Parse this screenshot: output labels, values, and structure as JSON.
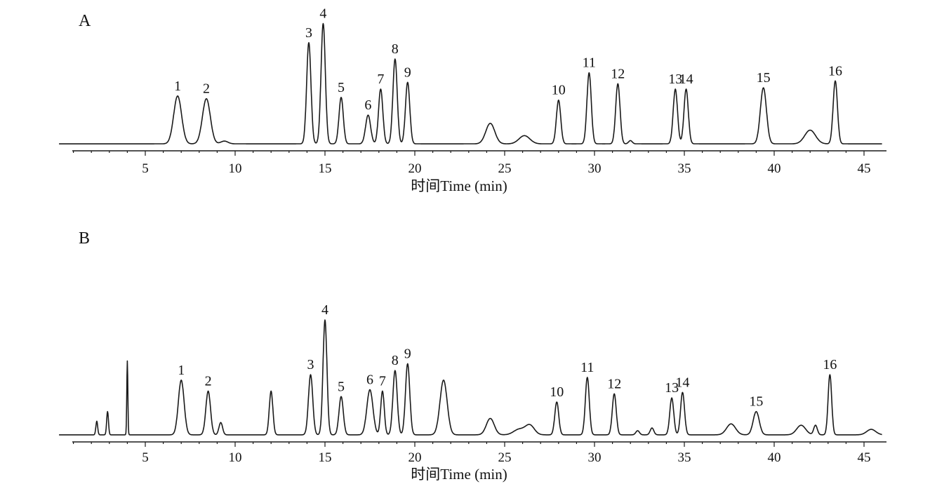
{
  "chart_data": [
    {
      "type": "line",
      "panel": "A",
      "xlabel": "时间Time (min)",
      "xlim": [
        0.2,
        46
      ],
      "xticks": [
        5,
        10,
        15,
        20,
        25,
        30,
        35,
        40,
        45
      ],
      "y_axis_visible": false,
      "grid": false,
      "baseline": 0.5,
      "peaks": [
        {
          "label": "1",
          "t": 6.8,
          "h": 17.5,
          "w": 0.22
        },
        {
          "label": "2",
          "t": 8.4,
          "h": 16.5,
          "w": 0.22
        },
        {
          "label": "",
          "t": 9.4,
          "h": 1.0,
          "w": 0.2
        },
        {
          "label": "3",
          "t": 14.1,
          "h": 37.0,
          "w": 0.12
        },
        {
          "label": "4",
          "t": 14.9,
          "h": 44.0,
          "w": 0.12
        },
        {
          "label": "5",
          "t": 15.9,
          "h": 17.0,
          "w": 0.12
        },
        {
          "label": "6",
          "t": 17.4,
          "h": 10.5,
          "w": 0.14
        },
        {
          "label": "7",
          "t": 18.1,
          "h": 20.0,
          "w": 0.12
        },
        {
          "label": "8",
          "t": 18.9,
          "h": 31.0,
          "w": 0.12
        },
        {
          "label": "9",
          "t": 19.6,
          "h": 22.5,
          "w": 0.12
        },
        {
          "label": "",
          "t": 24.2,
          "h": 7.5,
          "w": 0.25
        },
        {
          "label": "",
          "t": 26.1,
          "h": 3.0,
          "w": 0.3
        },
        {
          "label": "10",
          "t": 28.0,
          "h": 16.0,
          "w": 0.12
        },
        {
          "label": "11",
          "t": 29.7,
          "h": 26.0,
          "w": 0.12
        },
        {
          "label": "12",
          "t": 31.3,
          "h": 22.0,
          "w": 0.12
        },
        {
          "label": "",
          "t": 32.0,
          "h": 1.2,
          "w": 0.1
        },
        {
          "label": "13",
          "t": 34.5,
          "h": 20.0,
          "w": 0.12
        },
        {
          "label": "14",
          "t": 35.1,
          "h": 20.0,
          "w": 0.12
        },
        {
          "label": "15",
          "t": 39.4,
          "h": 20.5,
          "w": 0.17
        },
        {
          "label": "",
          "t": 42.0,
          "h": 5.0,
          "w": 0.3
        },
        {
          "label": "16",
          "t": 43.4,
          "h": 23.0,
          "w": 0.12
        }
      ]
    },
    {
      "type": "line",
      "panel": "B",
      "xlabel": "时间Time (min)",
      "xlim": [
        0.2,
        46
      ],
      "xticks": [
        5,
        10,
        15,
        20,
        25,
        30,
        35,
        40,
        45
      ],
      "y_axis_visible": false,
      "grid": false,
      "baseline": 0.8,
      "peaks": [
        {
          "label": "",
          "t": 2.3,
          "h": 5.0,
          "w": 0.05
        },
        {
          "label": "",
          "t": 2.9,
          "h": 8.5,
          "w": 0.05
        },
        {
          "label": "",
          "t": 4.0,
          "h": 27.0,
          "w": 0.03
        },
        {
          "label": "1",
          "t": 7.0,
          "h": 20.0,
          "w": 0.16
        },
        {
          "label": "2",
          "t": 8.5,
          "h": 16.0,
          "w": 0.13
        },
        {
          "label": "",
          "t": 9.2,
          "h": 4.5,
          "w": 0.1
        },
        {
          "label": "",
          "t": 12.0,
          "h": 16.0,
          "w": 0.1
        },
        {
          "label": "3",
          "t": 14.2,
          "h": 22.0,
          "w": 0.12
        },
        {
          "label": "4",
          "t": 15.0,
          "h": 42.0,
          "w": 0.11
        },
        {
          "label": "5",
          "t": 15.9,
          "h": 14.0,
          "w": 0.12
        },
        {
          "label": "6",
          "t": 17.5,
          "h": 16.5,
          "w": 0.17
        },
        {
          "label": "7",
          "t": 18.2,
          "h": 16.0,
          "w": 0.1
        },
        {
          "label": "8",
          "t": 18.9,
          "h": 23.5,
          "w": 0.12
        },
        {
          "label": "9",
          "t": 19.6,
          "h": 26.0,
          "w": 0.12
        },
        {
          "label": "",
          "t": 21.6,
          "h": 20.0,
          "w": 0.2
        },
        {
          "label": "",
          "t": 24.2,
          "h": 6.0,
          "w": 0.22
        },
        {
          "label": "",
          "t": 25.8,
          "h": 2.0,
          "w": 0.3
        },
        {
          "label": "",
          "t": 26.4,
          "h": 3.5,
          "w": 0.25
        },
        {
          "label": "10",
          "t": 27.9,
          "h": 12.0,
          "w": 0.11
        },
        {
          "label": "11",
          "t": 29.6,
          "h": 21.0,
          "w": 0.11
        },
        {
          "label": "12",
          "t": 31.1,
          "h": 15.0,
          "w": 0.11
        },
        {
          "label": "",
          "t": 32.4,
          "h": 1.5,
          "w": 0.1
        },
        {
          "label": "",
          "t": 33.2,
          "h": 2.5,
          "w": 0.1
        },
        {
          "label": "13",
          "t": 34.3,
          "h": 13.5,
          "w": 0.11
        },
        {
          "label": "14",
          "t": 34.9,
          "h": 15.5,
          "w": 0.11
        },
        {
          "label": "",
          "t": 37.6,
          "h": 4.0,
          "w": 0.25
        },
        {
          "label": "15",
          "t": 39.0,
          "h": 8.5,
          "w": 0.17
        },
        {
          "label": "",
          "t": 41.5,
          "h": 3.5,
          "w": 0.25
        },
        {
          "label": "",
          "t": 42.3,
          "h": 3.5,
          "w": 0.1
        },
        {
          "label": "16",
          "t": 43.1,
          "h": 22.0,
          "w": 0.1
        },
        {
          "label": "",
          "t": 45.4,
          "h": 2.0,
          "w": 0.25
        }
      ]
    }
  ]
}
